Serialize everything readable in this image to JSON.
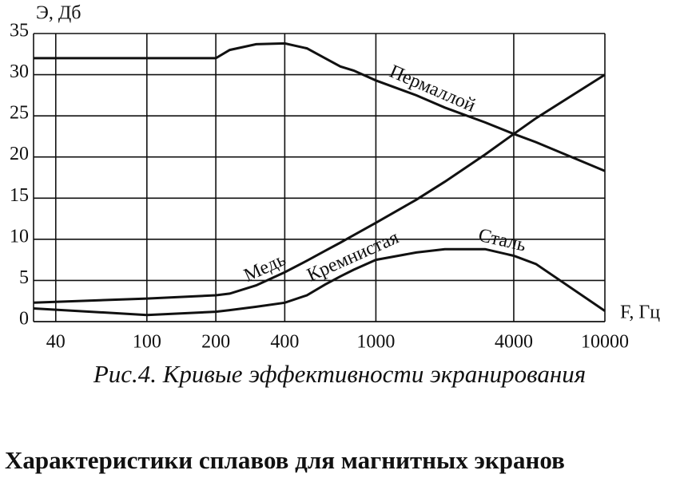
{
  "chart_data": {
    "type": "line",
    "xlabel": "F, Гц",
    "ylabel": "Э, Дб",
    "caption": "Рис.4. Кривые эффективности экранирования",
    "heading": "Характеристики сплавов для магнитных экранов",
    "log_x": true,
    "grid": true,
    "color": "#111111",
    "x": [
      32,
      100,
      200,
      230,
      300,
      400,
      500,
      600,
      700,
      800,
      1000,
      1500,
      2000,
      3000,
      4000,
      5000,
      10000
    ],
    "series": [
      {
        "labels": [
          "Пермаллой"
        ],
        "values": [
          32,
          32,
          32,
          33,
          33.7,
          33.8,
          33.2,
          32,
          31,
          30.5,
          29.3,
          27.5,
          26,
          24.2,
          22.8,
          21.8,
          18.3
        ]
      },
      {
        "labels": [
          "Медь"
        ],
        "values": [
          2.3,
          2.8,
          3.2,
          3.4,
          4.4,
          6,
          7.4,
          8.6,
          9.6,
          10.5,
          12,
          14.8,
          17,
          20.3,
          22.8,
          24.7,
          30
        ]
      },
      {
        "labels": [
          "Кремнистая",
          "Сталь"
        ],
        "values": [
          1.6,
          0.8,
          1.2,
          1.4,
          1.8,
          2.3,
          3.2,
          4.5,
          5.5,
          6.3,
          7.5,
          8.4,
          8.8,
          8.8,
          8,
          7,
          1.3
        ]
      }
    ],
    "xlim": [
      32,
      10000
    ],
    "xticks": [
      40,
      100,
      200,
      400,
      1000,
      4000,
      10000
    ],
    "ylim": [
      0,
      35
    ],
    "yticks": [
      0,
      5,
      10,
      15,
      20,
      25,
      30,
      35
    ]
  }
}
